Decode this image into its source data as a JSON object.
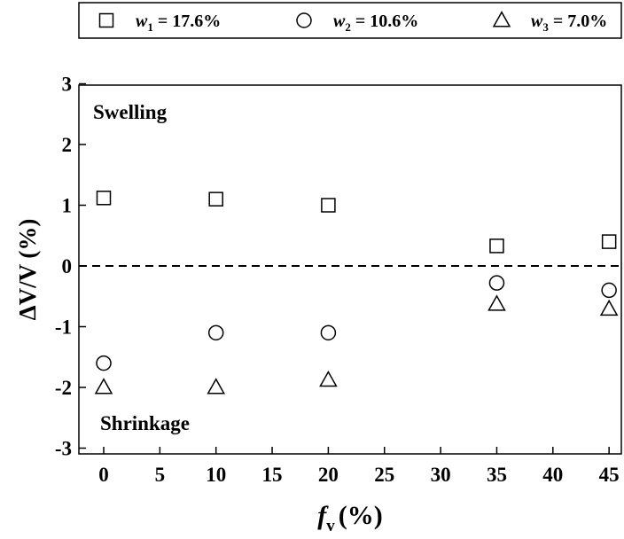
{
  "chart_data": {
    "type": "scatter",
    "title": "",
    "xlabel": {
      "main": "f",
      "sub": "v",
      "unit": "(%)"
    },
    "ylabel": "ΔV/V (%)",
    "xlim": [
      -2,
      47
    ],
    "ylim": [
      -3,
      3
    ],
    "xticks": [
      0,
      5,
      10,
      15,
      20,
      25,
      30,
      35,
      40,
      45
    ],
    "yticks": [
      -3,
      -2,
      -1,
      0,
      1,
      2,
      3
    ],
    "grid": false,
    "legend_position": "top",
    "reference_line": {
      "y": 0,
      "style": "dashed"
    },
    "annotations": [
      {
        "text": "Swelling"
      },
      {
        "text": "Shrinkage"
      }
    ],
    "series": [
      {
        "var": "w",
        "sub": "1",
        "value_label": " = 17.6%",
        "marker": "square",
        "x": [
          0,
          10,
          20,
          35,
          45
        ],
        "y": [
          1.12,
          1.1,
          1.0,
          0.33,
          0.4
        ]
      },
      {
        "var": "w",
        "sub": "2",
        "value_label": " = 10.6%",
        "marker": "circle",
        "x": [
          0,
          10,
          20,
          35,
          45
        ],
        "y": [
          -1.6,
          -1.1,
          -1.1,
          -0.28,
          -0.4
        ]
      },
      {
        "var": "w",
        "sub": "3",
        "value_label": " = 7.0%",
        "marker": "triangle",
        "x": [
          0,
          10,
          20,
          35,
          45
        ],
        "y": [
          -2.0,
          -2.0,
          -1.88,
          -0.63,
          -0.71
        ]
      }
    ]
  }
}
